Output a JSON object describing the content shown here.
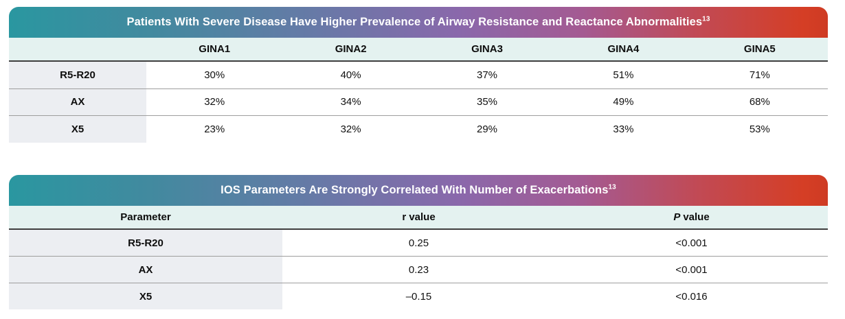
{
  "table1": {
    "title": "Patients With Severe Disease Have Higher Prevalence of Airway Resistance and Reactance Abnormalities",
    "title_superscript": "13",
    "column_headers": [
      "GINA1",
      "GINA2",
      "GINA3",
      "GINA4",
      "GINA5"
    ],
    "row_labels": [
      "R5-R20",
      "AX",
      "X5"
    ],
    "rows": [
      [
        "30%",
        "40%",
        "37%",
        "51%",
        "71%"
      ],
      [
        "32%",
        "34%",
        "35%",
        "49%",
        "68%"
      ],
      [
        "23%",
        "32%",
        "29%",
        "33%",
        "53%"
      ]
    ]
  },
  "table2": {
    "title": "IOS Parameters Are Strongly Correlated With Number of Exacerbations",
    "title_superscript": "13",
    "column_headers": {
      "parameter": "Parameter",
      "r_value": "r value",
      "p_symbol": "P",
      "p_rest": "value"
    },
    "row_labels": [
      "R5-R20",
      "AX",
      "X5"
    ],
    "rows": [
      [
        "0.25",
        "<0.001"
      ],
      [
        "0.23",
        "<0.001"
      ],
      [
        "–0.15",
        "<0.016"
      ]
    ]
  },
  "colors": {
    "gradient_teal": "#2a97a0",
    "gradient_purple": "#8a68ab",
    "gradient_red": "#d53e25",
    "header_row_mint": "#e4f2f0",
    "label_column_gray": "#eceef2",
    "header_underline": "#3e3e3e",
    "row_separator": "#9d9d9d",
    "text": "#111111",
    "title_text": "#ffffff"
  }
}
